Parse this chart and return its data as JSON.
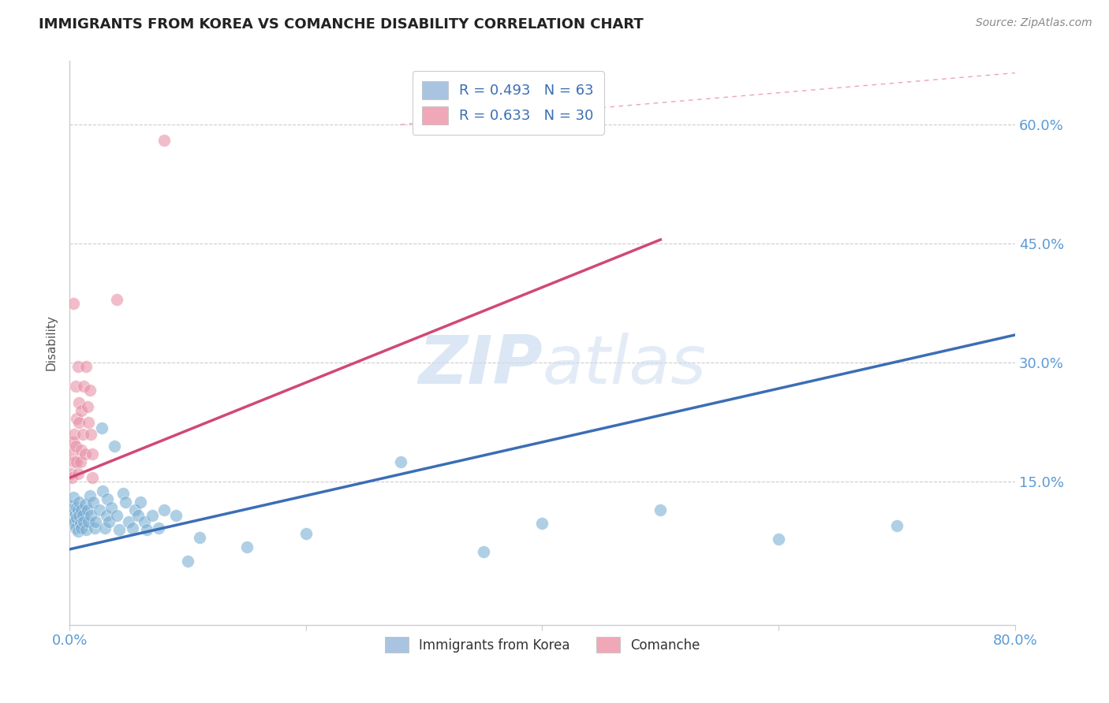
{
  "title": "IMMIGRANTS FROM KOREA VS COMANCHE DISABILITY CORRELATION CHART",
  "source": "Source: ZipAtlas.com",
  "ylabel": "Disability",
  "xlim": [
    0.0,
    0.8
  ],
  "ylim": [
    -0.03,
    0.68
  ],
  "yticks": [
    0.15,
    0.3,
    0.45,
    0.6
  ],
  "ytick_labels": [
    "15.0%",
    "30.0%",
    "45.0%",
    "60.0%"
  ],
  "xtick_labels": [
    "0.0%",
    "",
    "",
    "",
    "80.0%"
  ],
  "legend_label1": "Immigrants from Korea",
  "legend_label2": "Comanche",
  "blue_color": "#7bafd4",
  "pink_color": "#e891a8",
  "blue_scatter": [
    [
      0.001,
      0.115
    ],
    [
      0.002,
      0.108
    ],
    [
      0.002,
      0.12
    ],
    [
      0.003,
      0.098
    ],
    [
      0.003,
      0.13
    ],
    [
      0.004,
      0.112
    ],
    [
      0.004,
      0.1
    ],
    [
      0.005,
      0.092
    ],
    [
      0.005,
      0.11
    ],
    [
      0.006,
      0.118
    ],
    [
      0.006,
      0.105
    ],
    [
      0.007,
      0.115
    ],
    [
      0.007,
      0.088
    ],
    [
      0.008,
      0.108
    ],
    [
      0.008,
      0.125
    ],
    [
      0.009,
      0.098
    ],
    [
      0.01,
      0.092
    ],
    [
      0.01,
      0.115
    ],
    [
      0.011,
      0.108
    ],
    [
      0.012,
      0.1
    ],
    [
      0.013,
      0.122
    ],
    [
      0.014,
      0.09
    ],
    [
      0.015,
      0.115
    ],
    [
      0.016,
      0.1
    ],
    [
      0.017,
      0.132
    ],
    [
      0.018,
      0.108
    ],
    [
      0.02,
      0.125
    ],
    [
      0.021,
      0.092
    ],
    [
      0.022,
      0.1
    ],
    [
      0.025,
      0.115
    ],
    [
      0.027,
      0.218
    ],
    [
      0.028,
      0.138
    ],
    [
      0.03,
      0.092
    ],
    [
      0.031,
      0.108
    ],
    [
      0.032,
      0.128
    ],
    [
      0.033,
      0.1
    ],
    [
      0.035,
      0.118
    ],
    [
      0.038,
      0.195
    ],
    [
      0.04,
      0.108
    ],
    [
      0.042,
      0.09
    ],
    [
      0.045,
      0.135
    ],
    [
      0.047,
      0.125
    ],
    [
      0.05,
      0.1
    ],
    [
      0.053,
      0.092
    ],
    [
      0.055,
      0.115
    ],
    [
      0.058,
      0.108
    ],
    [
      0.06,
      0.125
    ],
    [
      0.063,
      0.1
    ],
    [
      0.065,
      0.09
    ],
    [
      0.07,
      0.108
    ],
    [
      0.075,
      0.092
    ],
    [
      0.08,
      0.115
    ],
    [
      0.09,
      0.108
    ],
    [
      0.1,
      0.05
    ],
    [
      0.11,
      0.08
    ],
    [
      0.15,
      0.068
    ],
    [
      0.2,
      0.085
    ],
    [
      0.28,
      0.175
    ],
    [
      0.35,
      0.062
    ],
    [
      0.4,
      0.098
    ],
    [
      0.5,
      0.115
    ],
    [
      0.6,
      0.078
    ],
    [
      0.7,
      0.095
    ]
  ],
  "pink_scatter": [
    [
      0.001,
      0.16
    ],
    [
      0.002,
      0.155
    ],
    [
      0.002,
      0.185
    ],
    [
      0.003,
      0.2
    ],
    [
      0.003,
      0.375
    ],
    [
      0.004,
      0.21
    ],
    [
      0.004,
      0.175
    ],
    [
      0.005,
      0.27
    ],
    [
      0.005,
      0.195
    ],
    [
      0.006,
      0.23
    ],
    [
      0.006,
      0.175
    ],
    [
      0.007,
      0.295
    ],
    [
      0.007,
      0.16
    ],
    [
      0.008,
      0.25
    ],
    [
      0.008,
      0.225
    ],
    [
      0.009,
      0.175
    ],
    [
      0.01,
      0.24
    ],
    [
      0.01,
      0.19
    ],
    [
      0.011,
      0.21
    ],
    [
      0.012,
      0.27
    ],
    [
      0.013,
      0.185
    ],
    [
      0.014,
      0.295
    ],
    [
      0.015,
      0.245
    ],
    [
      0.016,
      0.225
    ],
    [
      0.017,
      0.265
    ],
    [
      0.018,
      0.21
    ],
    [
      0.019,
      0.155
    ],
    [
      0.019,
      0.185
    ],
    [
      0.04,
      0.38
    ],
    [
      0.08,
      0.58
    ]
  ],
  "blue_line": {
    "x0": 0.0,
    "y0": 0.065,
    "x1": 0.8,
    "y1": 0.335
  },
  "pink_line": {
    "x0": 0.0,
    "y0": 0.155,
    "x1": 0.5,
    "y1": 0.455
  },
  "diag_line": {
    "x0": 0.3,
    "y0": 0.6,
    "x1": 0.8,
    "y1": 0.655
  },
  "grid_color": "#cccccc",
  "background_color": "#ffffff",
  "title_fontsize": 13,
  "text_color": "#5b9bd5",
  "legend_text_color": "#333333",
  "source_color": "#888888"
}
